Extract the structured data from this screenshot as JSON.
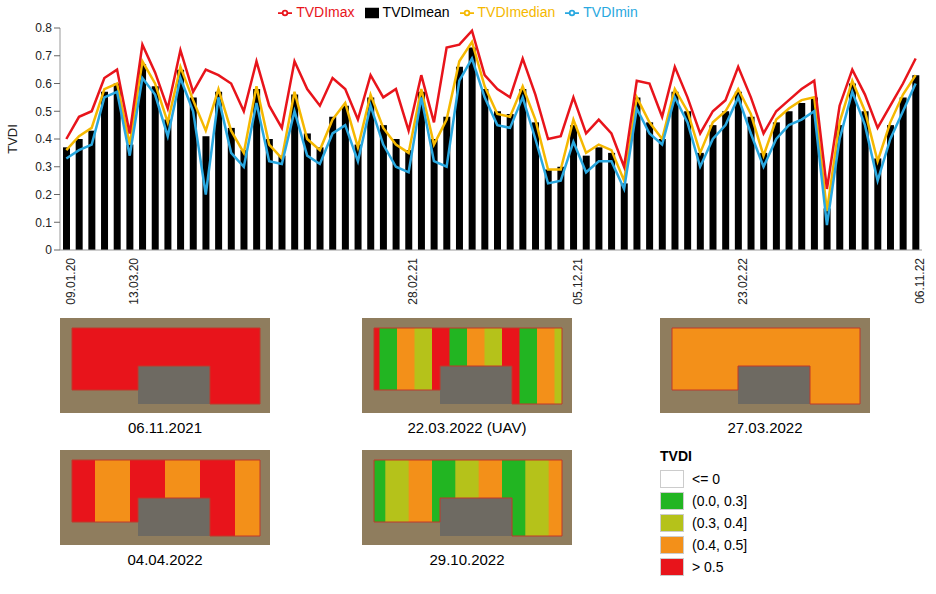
{
  "chart_data": {
    "type": "bar",
    "y_label": "TVDI",
    "ylim": [
      0,
      0.8
    ],
    "yticks": [
      0,
      0.1,
      0.2,
      0.3,
      0.4,
      0.5,
      0.6,
      0.7,
      0.8
    ],
    "grid": false,
    "legend": "top",
    "categories": [
      "09.01.20",
      null,
      null,
      null,
      null,
      "13.03.20",
      null,
      null,
      null,
      null,
      null,
      null,
      null,
      null,
      null,
      null,
      null,
      null,
      null,
      null,
      null,
      null,
      null,
      null,
      null,
      null,
      null,
      "28.02.21",
      null,
      null,
      null,
      null,
      null,
      null,
      null,
      null,
      null,
      null,
      null,
      null,
      "05.12.21",
      null,
      null,
      null,
      null,
      null,
      null,
      null,
      null,
      null,
      null,
      null,
      null,
      "23.02.22",
      null,
      null,
      null,
      null,
      null,
      null,
      null,
      null,
      null,
      null,
      null,
      null,
      null,
      "06.11.22"
    ],
    "series": [
      {
        "name": "TVDImean",
        "type": "bar",
        "color": "#000000",
        "values": [
          0.37,
          0.4,
          0.43,
          0.57,
          0.6,
          0.38,
          0.67,
          0.59,
          0.47,
          0.65,
          0.55,
          0.41,
          0.57,
          0.44,
          0.36,
          0.58,
          0.4,
          0.34,
          0.56,
          0.42,
          0.37,
          0.48,
          0.52,
          0.38,
          0.55,
          0.45,
          0.4,
          0.36,
          0.57,
          0.4,
          0.48,
          0.66,
          0.73,
          0.58,
          0.5,
          0.49,
          0.58,
          0.46,
          0.29,
          0.3,
          0.45,
          0.34,
          0.37,
          0.35,
          0.24,
          0.55,
          0.46,
          0.4,
          0.57,
          0.5,
          0.35,
          0.45,
          0.5,
          0.57,
          0.48,
          0.35,
          0.46,
          0.5,
          0.53,
          0.55,
          0.15,
          0.45,
          0.6,
          0.5,
          0.33,
          0.45,
          0.55,
          0.63
        ]
      },
      {
        "name": "TVDImedian",
        "type": "line",
        "color": "#f5b800",
        "values": [
          0.36,
          0.41,
          0.44,
          0.58,
          0.6,
          0.38,
          0.68,
          0.6,
          0.46,
          0.66,
          0.54,
          0.43,
          0.58,
          0.43,
          0.35,
          0.59,
          0.38,
          0.33,
          0.57,
          0.4,
          0.36,
          0.47,
          0.53,
          0.37,
          0.56,
          0.44,
          0.38,
          0.35,
          0.58,
          0.38,
          0.47,
          0.68,
          0.75,
          0.59,
          0.49,
          0.48,
          0.59,
          0.47,
          0.29,
          0.29,
          0.47,
          0.35,
          0.38,
          0.36,
          0.25,
          0.55,
          0.46,
          0.4,
          0.58,
          0.5,
          0.35,
          0.46,
          0.5,
          0.58,
          0.49,
          0.34,
          0.47,
          0.51,
          0.54,
          0.55,
          0.14,
          0.46,
          0.61,
          0.5,
          0.32,
          0.46,
          0.56,
          0.63
        ]
      },
      {
        "name": "TVDImax",
        "type": "line",
        "color": "#e8141b",
        "values": [
          0.4,
          0.48,
          0.5,
          0.62,
          0.65,
          0.42,
          0.74,
          0.64,
          0.51,
          0.72,
          0.57,
          0.65,
          0.63,
          0.6,
          0.5,
          0.68,
          0.52,
          0.44,
          0.68,
          0.58,
          0.52,
          0.62,
          0.58,
          0.47,
          0.63,
          0.55,
          0.58,
          0.43,
          0.63,
          0.46,
          0.73,
          0.74,
          0.79,
          0.63,
          0.58,
          0.55,
          0.69,
          0.56,
          0.4,
          0.41,
          0.55,
          0.42,
          0.47,
          0.42,
          0.3,
          0.61,
          0.6,
          0.48,
          0.66,
          0.55,
          0.42,
          0.5,
          0.54,
          0.66,
          0.55,
          0.42,
          0.5,
          0.54,
          0.58,
          0.61,
          0.22,
          0.52,
          0.65,
          0.56,
          0.44,
          0.52,
          0.6,
          0.69
        ]
      },
      {
        "name": "TVDImin",
        "type": "line",
        "color": "#29a8e0",
        "values": [
          0.33,
          0.36,
          0.38,
          0.55,
          0.57,
          0.34,
          0.62,
          0.56,
          0.41,
          0.62,
          0.5,
          0.2,
          0.55,
          0.35,
          0.3,
          0.53,
          0.32,
          0.31,
          0.5,
          0.34,
          0.31,
          0.42,
          0.45,
          0.32,
          0.52,
          0.38,
          0.3,
          0.28,
          0.55,
          0.32,
          0.3,
          0.61,
          0.69,
          0.55,
          0.45,
          0.44,
          0.55,
          0.4,
          0.24,
          0.25,
          0.39,
          0.28,
          0.32,
          0.32,
          0.22,
          0.51,
          0.42,
          0.38,
          0.55,
          0.46,
          0.3,
          0.4,
          0.45,
          0.55,
          0.42,
          0.3,
          0.4,
          0.45,
          0.47,
          0.5,
          0.09,
          0.4,
          0.57,
          0.45,
          0.25,
          0.4,
          0.5,
          0.6
        ]
      }
    ]
  },
  "maps": {
    "panels": [
      {
        "caption": "06.11.2021",
        "classes": [
          "> 0.5"
        ]
      },
      {
        "caption": "22.03.2022 (UAV)",
        "classes": [
          "> 0.5",
          "(0.0, 0.3]",
          "(0.4, 0.5]",
          "(0.3, 0.4]"
        ]
      },
      {
        "caption": "27.03.2022",
        "classes": [
          "(0.4, 0.5]"
        ]
      },
      {
        "caption": "04.04.2022",
        "classes": [
          "> 0.5",
          "(0.4, 0.5]"
        ]
      },
      {
        "caption": "29.10.2022",
        "classes": [
          "(0.0, 0.3]",
          "(0.3, 0.4]",
          "(0.4, 0.5]"
        ]
      }
    ],
    "legend": {
      "title": "TVDI",
      "items": [
        {
          "label": "<= 0",
          "color": "#ffffff"
        },
        {
          "label": "(0.0, 0.3]",
          "color": "#22b522"
        },
        {
          "label": "(0.3, 0.4]",
          "color": "#b5c21a"
        },
        {
          "label": "(0.4, 0.5]",
          "color": "#f39019"
        },
        {
          "label": "> 0.5",
          "color": "#e8141b"
        }
      ]
    }
  }
}
